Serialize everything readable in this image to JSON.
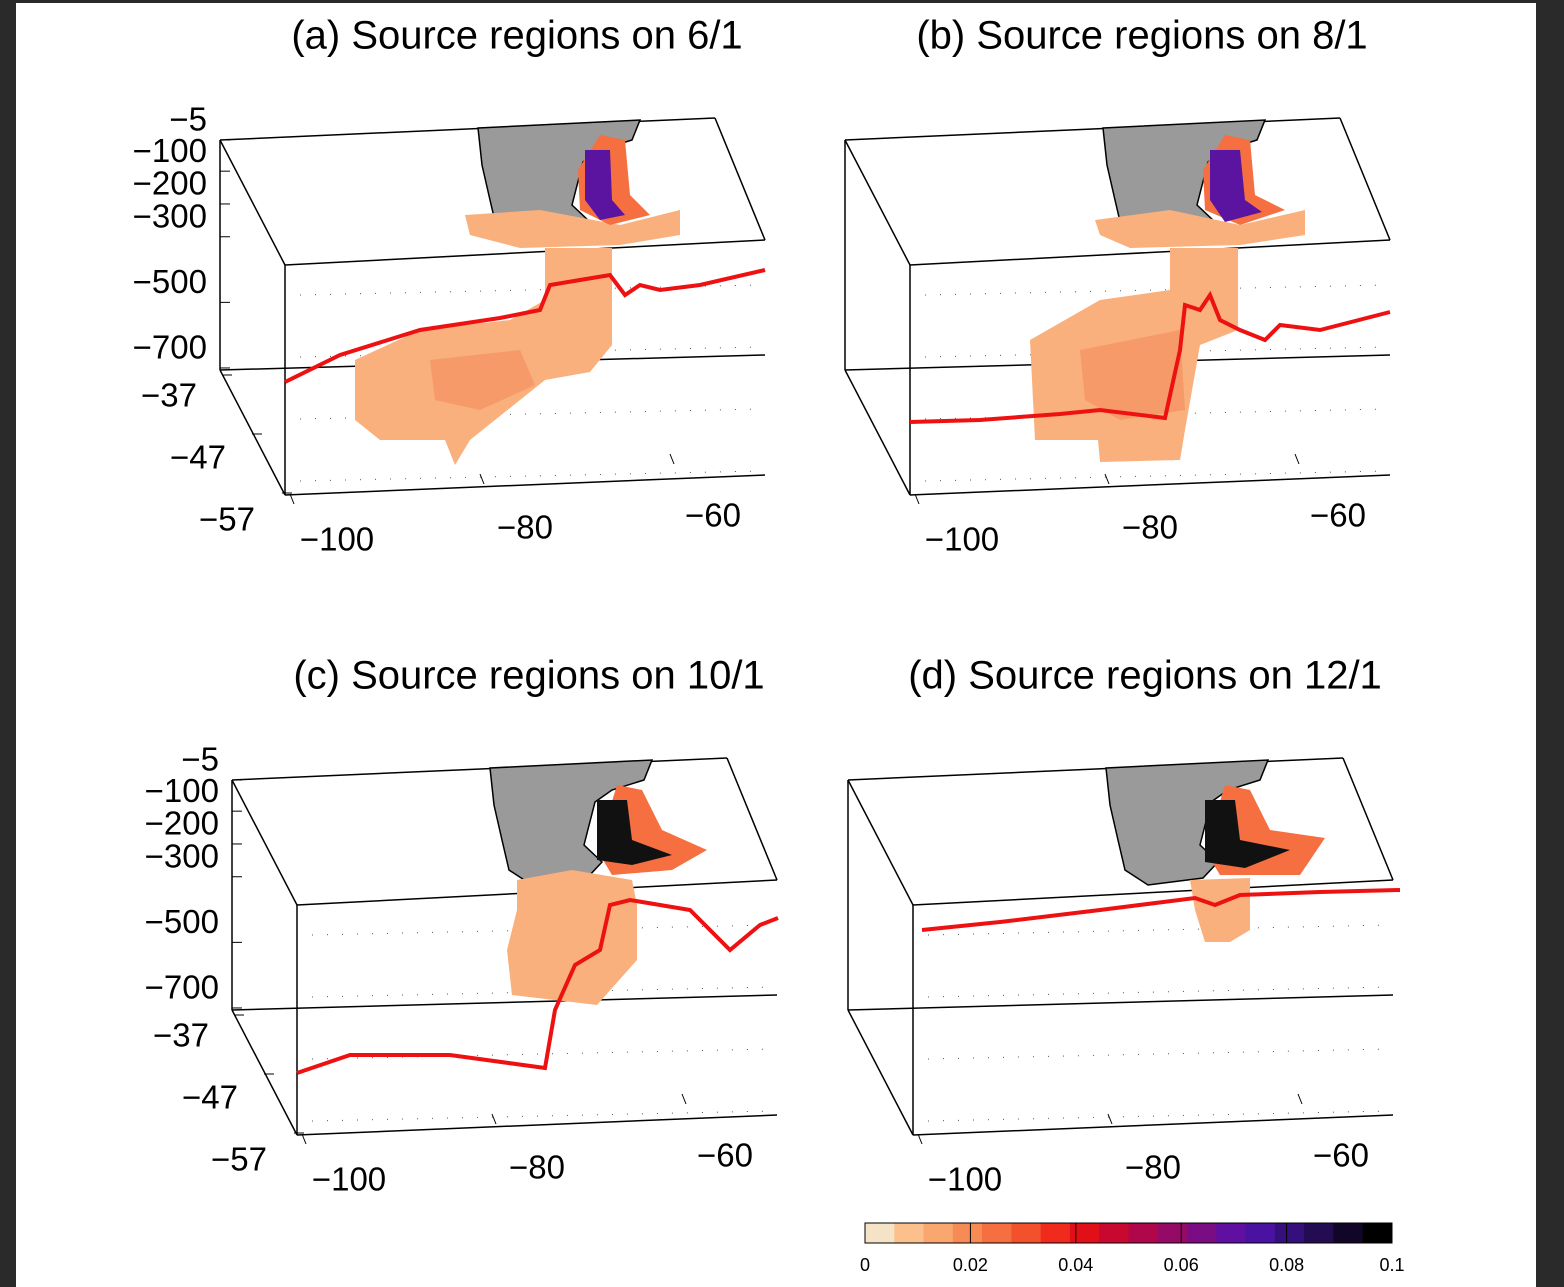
{
  "panels": [
    {
      "title": "(a) Source regions on 6/1",
      "zticks": [
        {
          "value": -5,
          "label": "−5"
        },
        {
          "value": -100,
          "label": "−100"
        },
        {
          "value": -200,
          "label": "−200"
        },
        {
          "value": -300,
          "label": "−300"
        },
        {
          "value": -500,
          "label": "−500"
        },
        {
          "value": -700,
          "label": "−700"
        }
      ],
      "latticks": [
        {
          "value": -37,
          "label": "−37"
        },
        {
          "value": -47,
          "label": "−47"
        },
        {
          "value": -57,
          "label": "−57"
        }
      ],
      "lonticks": [
        {
          "value": -100,
          "label": "−100"
        },
        {
          "value": -80,
          "label": "−80"
        },
        {
          "value": -60,
          "label": "−60"
        }
      ]
    },
    {
      "title": "(b) Source regions on 8/1",
      "lonticks": [
        {
          "value": -100,
          "label": "−100"
        },
        {
          "value": -80,
          "label": "−80"
        },
        {
          "value": -60,
          "label": "−60"
        }
      ]
    },
    {
      "title": "(c) Source regions on 10/1",
      "zticks": [
        {
          "value": -5,
          "label": "−5"
        },
        {
          "value": -100,
          "label": "−100"
        },
        {
          "value": -200,
          "label": "−200"
        },
        {
          "value": -300,
          "label": "−300"
        },
        {
          "value": -500,
          "label": "−500"
        },
        {
          "value": -700,
          "label": "−700"
        }
      ],
      "latticks": [
        {
          "value": -37,
          "label": "−37"
        },
        {
          "value": -47,
          "label": "−47"
        },
        {
          "value": -57,
          "label": "−57"
        }
      ],
      "lonticks": [
        {
          "value": -100,
          "label": "−100"
        },
        {
          "value": -80,
          "label": "−80"
        },
        {
          "value": -60,
          "label": "−60"
        }
      ]
    },
    {
      "title": "(d) Source regions on 12/1",
      "lonticks": [
        {
          "value": -100,
          "label": "−100"
        },
        {
          "value": -80,
          "label": "−80"
        },
        {
          "value": -60,
          "label": "−60"
        }
      ]
    }
  ],
  "colorbar": {
    "lim": [
      0,
      0.1
    ],
    "ticks": [
      0,
      0.02,
      0.04,
      0.06,
      0.08,
      0.1
    ],
    "colors": [
      "#f5e3c8",
      "#fbc08c",
      "#f9a66f",
      "#f78b56",
      "#f56f40",
      "#f3502c",
      "#f02a1c",
      "#e00f18",
      "#c8082e",
      "#b0064a",
      "#940a66",
      "#7a0c84",
      "#6010a0",
      "#4a12a0",
      "#36107a",
      "#240c52",
      "#120628",
      "#000000"
    ]
  }
}
